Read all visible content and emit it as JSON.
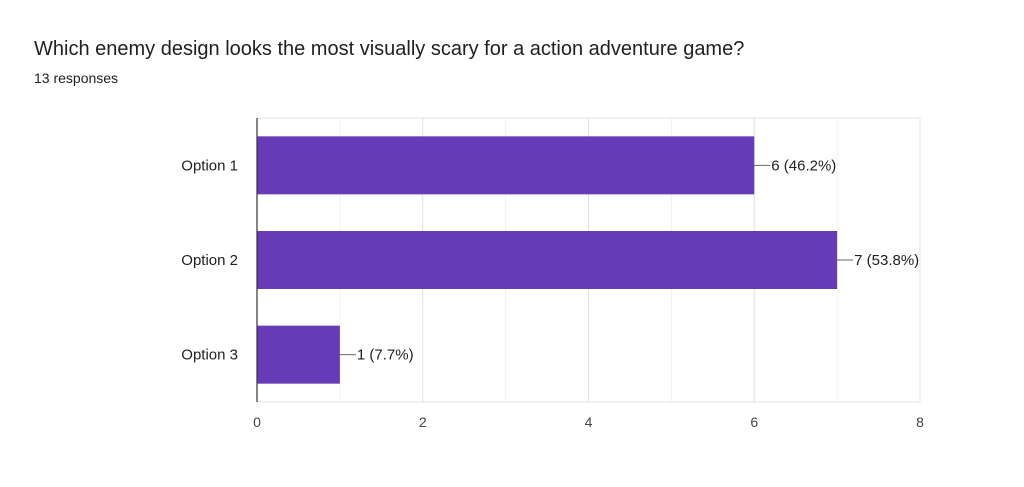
{
  "header": {
    "question": "Which enemy design looks the most visually scary for a action adventure game?",
    "responses": "13 responses"
  },
  "chart_data": {
    "type": "bar",
    "orientation": "horizontal",
    "categories": [
      "Option 1",
      "Option 2",
      "Option 3"
    ],
    "values": [
      6,
      7,
      1
    ],
    "value_labels": [
      "6 (46.2%)",
      "7 (53.8%)",
      "1 (7.7%)"
    ],
    "xlim": [
      0,
      8
    ],
    "xticks": [
      0,
      2,
      4,
      6,
      8
    ],
    "grid": true,
    "bar_color": "#673ab7"
  }
}
